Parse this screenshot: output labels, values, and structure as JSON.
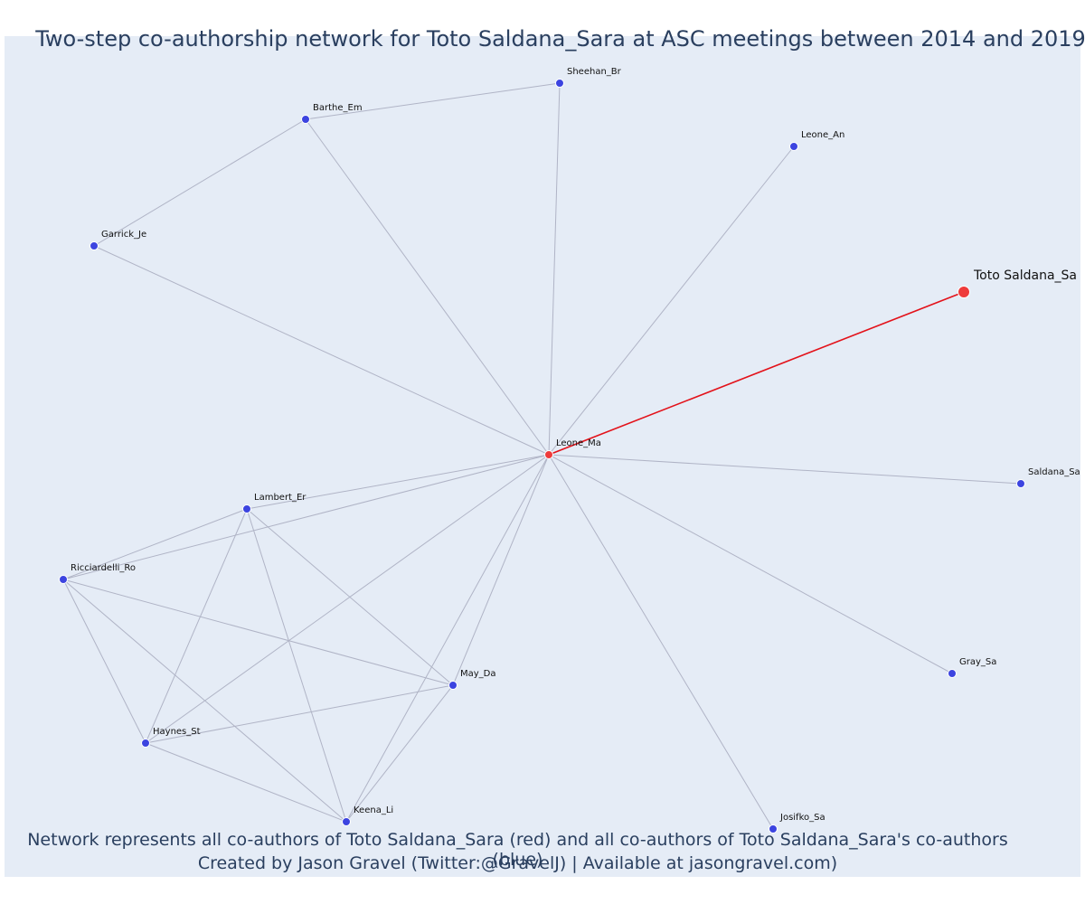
{
  "title": "Two-step co-authorship network for Toto Saldana_Sara at ASC meetings between 2014 and 2019",
  "footer": {
    "line1": "Network represents all co-authors of Toto Saldana_Sara (red) and all co-authors of Toto Saldana_Sara's co-authors (blue)",
    "line2": "Created by Jason Gravel (Twitter:@GravelJ) | Available at jasongravel.com)"
  },
  "colors": {
    "background": "#e5ecf6",
    "edge": "#b0b4c6",
    "focal_edge": "#e3121a",
    "primary_node": "#ee3b3b",
    "secondary_node": "#3c44e0",
    "text": "#2a3f5f"
  },
  "nodes": [
    {
      "id": "toto",
      "label": "Toto Saldana_Sa",
      "group": "focal"
    },
    {
      "id": "leone_ma",
      "label": "Leone_Ma",
      "group": "coauthor"
    },
    {
      "id": "sheehan",
      "label": "Sheehan_Br",
      "group": "second"
    },
    {
      "id": "barthe",
      "label": "Barthe_Em",
      "group": "second"
    },
    {
      "id": "leone_an",
      "label": "Leone_An",
      "group": "second"
    },
    {
      "id": "garrick",
      "label": "Garrick_Je",
      "group": "second"
    },
    {
      "id": "saldana",
      "label": "Saldana_Sa",
      "group": "second"
    },
    {
      "id": "lambert",
      "label": "Lambert_Er",
      "group": "second"
    },
    {
      "id": "ricciardelli",
      "label": "Ricciardelli_Ro",
      "group": "second"
    },
    {
      "id": "may",
      "label": "May_Da",
      "group": "second"
    },
    {
      "id": "gray",
      "label": "Gray_Sa",
      "group": "second"
    },
    {
      "id": "haynes",
      "label": "Haynes_St",
      "group": "second"
    },
    {
      "id": "keena",
      "label": "Keena_Li",
      "group": "second"
    },
    {
      "id": "josifko",
      "label": "Josifko_Sa",
      "group": "second"
    }
  ],
  "edges": [
    [
      "toto",
      "leone_ma"
    ],
    [
      "leone_ma",
      "sheehan"
    ],
    [
      "leone_ma",
      "barthe"
    ],
    [
      "leone_ma",
      "leone_an"
    ],
    [
      "leone_ma",
      "garrick"
    ],
    [
      "leone_ma",
      "saldana"
    ],
    [
      "leone_ma",
      "lambert"
    ],
    [
      "leone_ma",
      "ricciardelli"
    ],
    [
      "leone_ma",
      "may"
    ],
    [
      "leone_ma",
      "gray"
    ],
    [
      "leone_ma",
      "haynes"
    ],
    [
      "leone_ma",
      "keena"
    ],
    [
      "leone_ma",
      "josifko"
    ],
    [
      "sheehan",
      "barthe"
    ],
    [
      "barthe",
      "garrick"
    ],
    [
      "lambert",
      "ricciardelli"
    ],
    [
      "lambert",
      "haynes"
    ],
    [
      "lambert",
      "keena"
    ],
    [
      "lambert",
      "may"
    ],
    [
      "ricciardelli",
      "may"
    ],
    [
      "ricciardelli",
      "haynes"
    ],
    [
      "ricciardelli",
      "keena"
    ],
    [
      "haynes",
      "may"
    ],
    [
      "haynes",
      "keena"
    ],
    [
      "keena",
      "may"
    ]
  ]
}
